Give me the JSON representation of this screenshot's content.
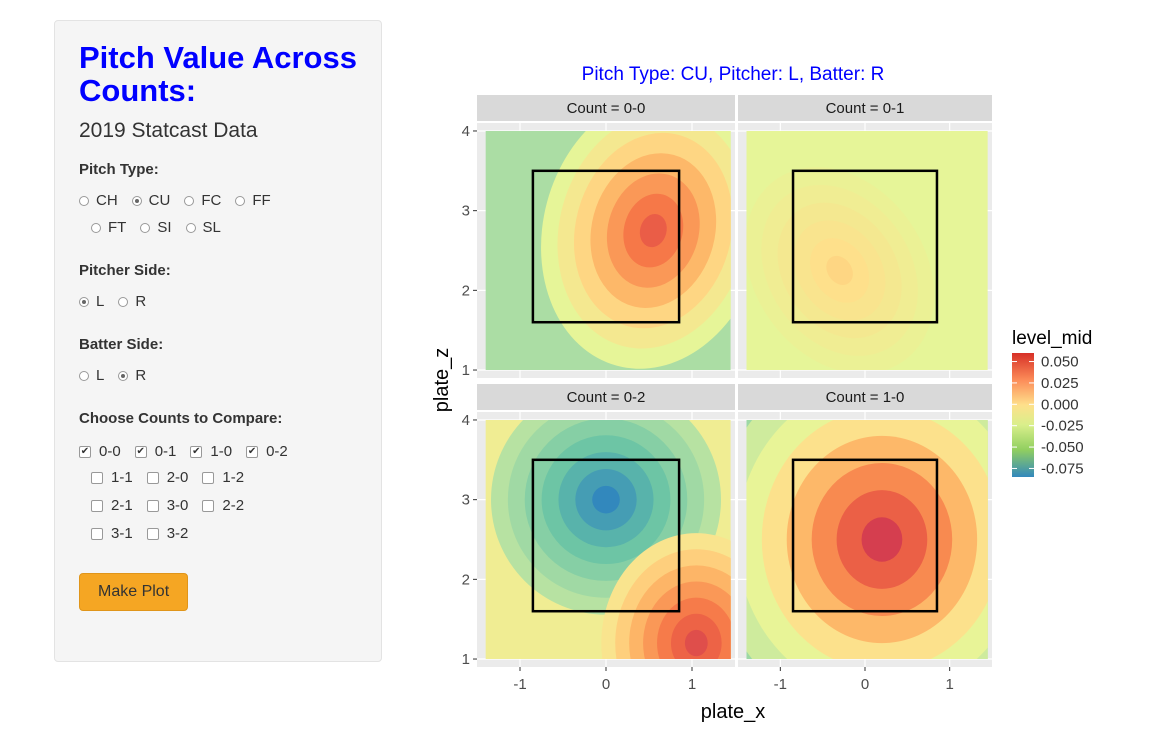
{
  "sidebar": {
    "title": "Pitch Value Across Counts:",
    "subtitle": "2019 Statcast Data",
    "pitch_type": {
      "label": "Pitch Type:",
      "options": [
        "CH",
        "CU",
        "FC",
        "FF",
        "FT",
        "SI",
        "SL"
      ],
      "selected": "CU"
    },
    "pitcher_side": {
      "label": "Pitcher Side:",
      "options": [
        "L",
        "R"
      ],
      "selected": "L"
    },
    "batter_side": {
      "label": "Batter Side:",
      "options": [
        "L",
        "R"
      ],
      "selected": "R"
    },
    "counts": {
      "label": "Choose Counts to Compare:",
      "options": [
        "0-0",
        "0-1",
        "1-0",
        "0-2",
        "1-1",
        "2-0",
        "1-2",
        "2-1",
        "3-0",
        "2-2",
        "3-1",
        "3-2"
      ],
      "checked": [
        "0-0",
        "0-1",
        "1-0",
        "0-2"
      ]
    },
    "button_label": "Make Plot"
  },
  "colors": {
    "title_blue": "#0000ff",
    "button": "#f5a623",
    "panel_bg": "#ebebeb",
    "strip_bg": "#d9d9d9",
    "sidebar_bg": "#f5f5f5"
  },
  "chart_data": {
    "type": "heatmap",
    "title": "Pitch Type: CU, Pitcher: L, Batter: R",
    "xlabel": "plate_x",
    "ylabel": "plate_z",
    "xlim": [
      -1.5,
      1.5
    ],
    "ylim": [
      0.9,
      4.1
    ],
    "x_ticks": [
      "-1",
      "0",
      "1"
    ],
    "y_ticks": [
      "1",
      "2",
      "3",
      "4"
    ],
    "strike_zone": {
      "x": [
        -0.85,
        0.85
      ],
      "z": [
        1.6,
        3.5
      ]
    },
    "legend": {
      "title": "level_mid",
      "position": "right",
      "labels": [
        "0.050",
        "0.025",
        "0.000",
        "-0.025",
        "-0.050",
        "-0.075"
      ],
      "values": [
        0.05,
        0.025,
        0.0,
        -0.025,
        -0.05,
        -0.075
      ]
    },
    "panels": [
      {
        "strip": "Count = 0-0",
        "peak": {
          "x": 0.55,
          "z": 2.75
        },
        "peak_level": 0.045,
        "background_level": -0.025
      },
      {
        "strip": "Count = 0-1",
        "peak": {
          "x": -0.3,
          "z": 2.25
        },
        "peak_level": 0.015,
        "background_level": 0.0
      },
      {
        "strip": "Count = 0-2",
        "peak": {
          "x": 1.05,
          "z": 1.2
        },
        "peak_level": 0.05,
        "background_level": 0.005,
        "trough": {
          "x": 0.0,
          "z": 3.0
        },
        "trough_level": -0.075
      },
      {
        "strip": "Count = 1-0",
        "peak": {
          "x": 0.2,
          "z": 2.5
        },
        "peak_level": 0.055,
        "background_level": -0.03
      }
    ]
  }
}
